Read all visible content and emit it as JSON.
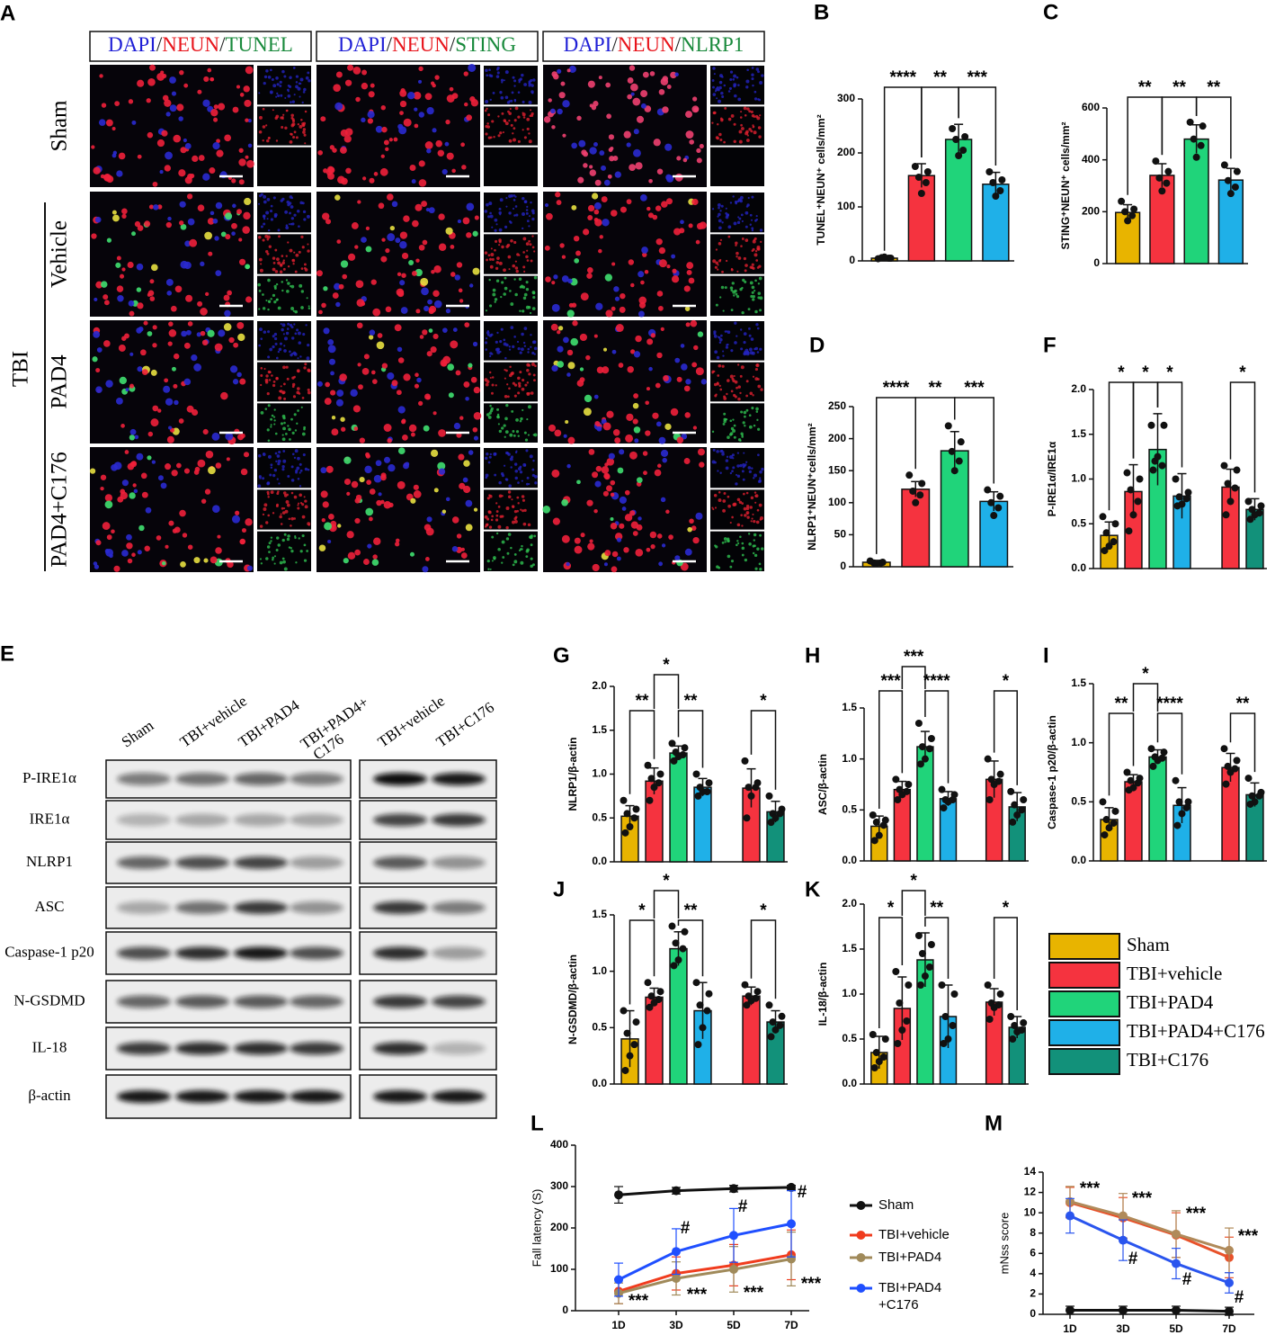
{
  "panel_a": {
    "label": "A",
    "stain_colors": [
      "#1f1fd6",
      "#222222",
      "#e8141b",
      "#222222",
      "#198a3c"
    ],
    "headers": [
      [
        "DAPI",
        "/",
        "NEUN",
        "/",
        "TUNEL"
      ],
      [
        "DAPI",
        "/",
        "NEUN",
        "/",
        "STING"
      ],
      [
        "DAPI",
        "/",
        "NEUN",
        "/",
        "NLRP1"
      ]
    ],
    "rows": [
      "Sham",
      "Vehicle",
      "PAD4",
      "PAD4+C176"
    ],
    "group": "TBI"
  },
  "panel_e": {
    "label": "E",
    "columns": [
      "Sham",
      "TBI+vehicle",
      "TBI+PAD4",
      [
        "TBI+PAD4+",
        "C176"
      ],
      "TBI+vehicle",
      "TBI+C176"
    ],
    "rows": [
      "P-IRE1α",
      "IRE1α",
      "NLRP1",
      "ASC",
      "Caspase-1 p20",
      "N-GSDMD",
      "IL-18",
      "β-actin"
    ]
  },
  "legend": {
    "names": [
      "Sham",
      "TBI+vehicle",
      "TBI+PAD4",
      "TBI+PAD4+C176",
      "TBI+C176"
    ],
    "colors": [
      "#e8b400",
      "#f5333f",
      "#20d47a",
      "#1fb0e8",
      "#12917a"
    ]
  },
  "chart_data": [
    {
      "type": "bar",
      "label": "B",
      "ylabel": "TUNEL⁺NEUN⁺ cells/mm²",
      "categories": [
        null,
        null,
        null,
        null
      ],
      "values": [
        5,
        158,
        225,
        142
      ],
      "errors": [
        2,
        22,
        28,
        22
      ],
      "points": [
        [
          4,
          5,
          6,
          5,
          7
        ],
        [
          175,
          165,
          155,
          145,
          125
        ],
        [
          245,
          230,
          225,
          205,
          195
        ],
        [
          165,
          150,
          145,
          130,
          120
        ]
      ],
      "colors": [
        "#e8b400",
        "#f5333f",
        "#20d47a",
        "#1fb0e8"
      ],
      "ylim": [
        0,
        300
      ],
      "yticks": [
        0,
        100,
        200,
        300
      ],
      "annotations": [
        "****",
        "**",
        "***"
      ]
    },
    {
      "type": "bar",
      "label": "C",
      "ylabel": "STING⁺NEUN⁺ cells/mm²",
      "categories": [
        null,
        null,
        null,
        null
      ],
      "values": [
        197,
        340,
        480,
        322
      ],
      "errors": [
        30,
        45,
        55,
        45
      ],
      "points": [
        [
          240,
          210,
          200,
          185,
          165
        ],
        [
          395,
          355,
          330,
          310,
          280
        ],
        [
          545,
          530,
          480,
          455,
          410
        ],
        [
          380,
          355,
          320,
          295,
          270
        ]
      ],
      "colors": [
        "#e8b400",
        "#f5333f",
        "#20d47a",
        "#1fb0e8"
      ],
      "ylim": [
        0,
        600
      ],
      "yticks": [
        0,
        200,
        400,
        600
      ],
      "annotations": [
        "**",
        "**",
        "**"
      ]
    },
    {
      "type": "bar",
      "label": "D",
      "ylabel": "NLRP1⁺NEUN⁺cells/mm²",
      "categories": [
        null,
        null,
        null,
        null
      ],
      "values": [
        7,
        121,
        181,
        102
      ],
      "errors": [
        3,
        12,
        30,
        15
      ],
      "points": [
        [
          9,
          7,
          6,
          6,
          5
        ],
        [
          143,
          130,
          118,
          112,
          100
        ],
        [
          220,
          195,
          180,
          165,
          150
        ],
        [
          120,
          110,
          100,
          92,
          80
        ]
      ],
      "colors": [
        "#e8b400",
        "#f5333f",
        "#20d47a",
        "#1fb0e8"
      ],
      "ylim": [
        0,
        250
      ],
      "yticks": [
        0,
        50,
        100,
        150,
        200,
        250
      ],
      "annotations": [
        "****",
        "**",
        "***"
      ]
    },
    {
      "type": "bar",
      "label": "F",
      "ylabel": "P-IRE1α/IRE1α",
      "categories": [
        null,
        null,
        null,
        null,
        null,
        null
      ],
      "values": [
        0.37,
        0.86,
        1.33,
        0.81,
        0.91,
        0.66
      ],
      "errors": [
        0.15,
        0.3,
        0.4,
        0.25,
        0.2,
        0.12
      ],
      "points": [
        [
          0.58,
          0.5,
          0.4,
          0.3,
          0.25,
          0.2
        ],
        [
          1.07,
          1.0,
          0.88,
          0.75,
          0.6,
          0.42
        ],
        [
          1.6,
          1.6,
          1.2,
          1.15,
          1.25,
          1.1
        ],
        [
          1.0,
          0.85,
          0.8,
          0.78,
          0.72,
          0.7
        ],
        [
          1.15,
          1.1,
          0.95,
          0.9,
          0.75,
          0.6
        ],
        [
          0.75,
          0.7,
          0.66,
          0.62,
          0.6,
          0.55
        ]
      ],
      "colors": [
        "#e8b400",
        "#f5333f",
        "#20d47a",
        "#1fb0e8",
        "#f5333f",
        "#12917a"
      ],
      "ylim": [
        0,
        2
      ],
      "yticks": [
        {
          "value": 0,
          "label": "0.0"
        },
        0.5,
        {
          "value": 1,
          "label": "1.0"
        },
        1.5,
        {
          "value": 2,
          "label": "2.0"
        }
      ],
      "annotations": [
        "*",
        "*",
        "*",
        "*"
      ]
    },
    {
      "type": "bar",
      "label": "G",
      "ylabel": "NLRP1/β-actin",
      "categories": [
        null,
        null,
        null,
        null,
        null,
        null
      ],
      "values": [
        0.52,
        0.92,
        1.24,
        0.85,
        0.84,
        0.57
      ],
      "errors": [
        0.12,
        0.15,
        0.08,
        0.1,
        0.22,
        0.12
      ],
      "points": [
        [
          0.7,
          0.6,
          0.55,
          0.5,
          0.4,
          0.33
        ],
        [
          1.1,
          1.0,
          0.95,
          0.9,
          0.85,
          0.7
        ],
        [
          1.35,
          1.3,
          1.25,
          1.22,
          1.2,
          1.15
        ],
        [
          1.0,
          0.9,
          0.85,
          0.8,
          0.8,
          0.75
        ],
        [
          1.15,
          0.9,
          0.85,
          0.85,
          0.75,
          0.5
        ],
        [
          0.75,
          0.6,
          0.55,
          0.55,
          0.5,
          0.45
        ]
      ],
      "colors": [
        "#e8b400",
        "#f5333f",
        "#20d47a",
        "#1fb0e8",
        "#f5333f",
        "#12917a"
      ],
      "ylim": [
        0,
        2
      ],
      "yticks": [
        {
          "value": 0,
          "label": "0.0"
        },
        0.5,
        {
          "value": 1,
          "label": "1.0"
        },
        1.5,
        {
          "value": 2,
          "label": "2.0"
        }
      ],
      "annotations": [
        "**",
        "*",
        "**",
        "*"
      ]
    },
    {
      "type": "bar",
      "label": "H",
      "ylabel": "ASC/β-actin",
      "categories": [
        null,
        null,
        null,
        null,
        null,
        null
      ],
      "values": [
        0.34,
        0.7,
        1.12,
        0.61,
        0.8,
        0.53
      ],
      "errors": [
        0.1,
        0.08,
        0.15,
        0.07,
        0.18,
        0.14
      ],
      "points": [
        [
          0.45,
          0.4,
          0.38,
          0.35,
          0.25,
          0.2
        ],
        [
          0.8,
          0.75,
          0.7,
          0.68,
          0.65,
          0.6
        ],
        [
          1.35,
          1.2,
          1.12,
          1.1,
          1.0,
          0.95
        ],
        [
          0.7,
          0.65,
          0.6,
          0.6,
          0.58,
          0.52
        ],
        [
          1.0,
          0.85,
          0.8,
          0.78,
          0.75,
          0.6
        ],
        [
          0.68,
          0.6,
          0.55,
          0.5,
          0.45,
          0.38
        ]
      ],
      "colors": [
        "#e8b400",
        "#f5333f",
        "#20d47a",
        "#1fb0e8",
        "#f5333f",
        "#12917a"
      ],
      "ylim": [
        0,
        1.5
      ],
      "yticks": [
        {
          "value": 0,
          "label": "0.0"
        },
        0.5,
        {
          "value": 1,
          "label": "1.0"
        },
        1.5
      ],
      "annotations": [
        "***",
        "***",
        "****",
        "*"
      ]
    },
    {
      "type": "bar",
      "label": "I",
      "ylabel": "Caspase-1 p20/β-actin",
      "categories": [
        null,
        null,
        null,
        null,
        null,
        null
      ],
      "values": [
        0.35,
        0.67,
        0.88,
        0.47,
        0.79,
        0.56
      ],
      "errors": [
        0.1,
        0.06,
        0.06,
        0.15,
        0.12,
        0.1
      ],
      "points": [
        [
          0.5,
          0.42,
          0.35,
          0.32,
          0.28,
          0.22
        ],
        [
          0.75,
          0.7,
          0.68,
          0.66,
          0.62,
          0.6
        ],
        [
          0.95,
          0.92,
          0.88,
          0.87,
          0.85,
          0.8
        ],
        [
          0.68,
          0.5,
          0.5,
          0.45,
          0.4,
          0.3
        ],
        [
          0.95,
          0.85,
          0.8,
          0.78,
          0.75,
          0.65
        ],
        [
          0.7,
          0.58,
          0.55,
          0.55,
          0.5,
          0.48
        ]
      ],
      "colors": [
        "#e8b400",
        "#f5333f",
        "#20d47a",
        "#1fb0e8",
        "#f5333f",
        "#12917a"
      ],
      "ylim": [
        0,
        1.5
      ],
      "yticks": [
        {
          "value": 0,
          "label": "0.0"
        },
        0.5,
        {
          "value": 1,
          "label": "1.0"
        },
        1.5
      ],
      "annotations": [
        "**",
        "*",
        "****",
        "**"
      ]
    },
    {
      "type": "bar",
      "label": "J",
      "ylabel": "N-GSDMD/β-actin",
      "categories": [
        null,
        null,
        null,
        null,
        null,
        null
      ],
      "values": [
        0.4,
        0.77,
        1.2,
        0.65,
        0.78,
        0.55
      ],
      "errors": [
        0.25,
        0.08,
        0.15,
        0.25,
        0.08,
        0.1
      ],
      "points": [
        [
          0.65,
          0.55,
          0.45,
          0.35,
          0.25,
          0.12
        ],
        [
          0.9,
          0.82,
          0.78,
          0.75,
          0.72,
          0.68
        ],
        [
          1.4,
          1.35,
          1.25,
          1.2,
          1.1,
          1.05
        ],
        [
          0.9,
          0.8,
          0.7,
          0.65,
          0.5,
          0.35
        ],
        [
          0.88,
          0.82,
          0.78,
          0.76,
          0.74,
          0.7
        ],
        [
          0.7,
          0.6,
          0.55,
          0.52,
          0.48,
          0.42
        ]
      ],
      "colors": [
        "#e8b400",
        "#f5333f",
        "#20d47a",
        "#1fb0e8",
        "#f5333f",
        "#12917a"
      ],
      "ylim": [
        0,
        1.5
      ],
      "yticks": [
        {
          "value": 0,
          "label": "0.0"
        },
        0.5,
        {
          "value": 1,
          "label": "1.0"
        },
        1.5
      ],
      "annotations": [
        "*",
        "*",
        "**",
        "*"
      ]
    },
    {
      "type": "bar",
      "label": "K",
      "ylabel": "IL-18/β-actin",
      "categories": [
        null,
        null,
        null,
        null,
        null,
        null
      ],
      "values": [
        0.35,
        0.84,
        1.38,
        0.75,
        0.91,
        0.63
      ],
      "errors": [
        0.18,
        0.35,
        0.3,
        0.35,
        0.15,
        0.12
      ],
      "points": [
        [
          0.55,
          0.5,
          0.35,
          0.3,
          0.25,
          0.18
        ],
        [
          1.25,
          1.1,
          0.9,
          0.7,
          0.6,
          0.45
        ],
        [
          1.65,
          1.55,
          1.45,
          1.3,
          1.2,
          1.1
        ],
        [
          1.1,
          1.0,
          0.75,
          0.65,
          0.5,
          0.45
        ],
        [
          1.1,
          1.0,
          0.9,
          0.88,
          0.85,
          0.72
        ],
        [
          0.75,
          0.68,
          0.65,
          0.6,
          0.58,
          0.5
        ]
      ],
      "colors": [
        "#e8b400",
        "#f5333f",
        "#20d47a",
        "#1fb0e8",
        "#f5333f",
        "#12917a"
      ],
      "ylim": [
        0,
        2
      ],
      "yticks": [
        {
          "value": 0,
          "label": "0.0"
        },
        0.5,
        {
          "value": 1,
          "label": "1.0"
        },
        1.5,
        {
          "value": 2,
          "label": "2.0"
        }
      ],
      "annotations": [
        "*",
        "*",
        "**",
        "*"
      ]
    },
    {
      "type": "line",
      "label": "L",
      "ylabel": "Fall latency  (S)",
      "x": [
        "1D",
        "3D",
        "5D",
        "7D"
      ],
      "ylim": [
        0,
        400
      ],
      "yticks": [
        0,
        100,
        200,
        300,
        400
      ],
      "legend": true,
      "series": [
        {
          "name": "Sham",
          "color": "#111111",
          "values": [
            280,
            290,
            295,
            298
          ],
          "errors": [
            20,
            8,
            8,
            5
          ]
        },
        {
          "name": "TBI+vehicle",
          "color": "#f03c1e",
          "values": [
            47,
            90,
            110,
            135
          ],
          "errors": [
            30,
            40,
            50,
            60
          ]
        },
        {
          "name": "TBI+PAD4",
          "color": "#a08a5a",
          "values": [
            42,
            78,
            100,
            125
          ],
          "errors": [
            25,
            40,
            55,
            65
          ]
        },
        {
          "name": [
            "TBI+PAD4",
            "+C176"
          ],
          "color": "#1f4fff",
          "values": [
            75,
            143,
            182,
            210
          ],
          "errors": [
            40,
            55,
            65,
            80
          ]
        }
      ],
      "annotations": [
        "***",
        "***",
        "***",
        "***",
        "#",
        "#",
        "#"
      ]
    },
    {
      "type": "line",
      "label": "M",
      "ylabel": "mNss score",
      "x": [
        "1D",
        "3D",
        "5D",
        "7D"
      ],
      "ylim": [
        0,
        14
      ],
      "yticks": [
        0,
        2,
        4,
        6,
        8,
        10,
        12,
        14
      ],
      "legend": false,
      "series": [
        {
          "color": "#111111",
          "values": [
            0.4,
            0.4,
            0.4,
            0.3
          ],
          "errors": [
            0.4,
            0.4,
            0.4,
            0.4
          ]
        },
        {
          "color": "#e8522a",
          "values": [
            11,
            9.5,
            7.8,
            5.6
          ],
          "errors": [
            1.5,
            2,
            2.2,
            2
          ]
        },
        {
          "color": "#b08a5a",
          "values": [
            11.1,
            9.7,
            7.9,
            6.3
          ],
          "errors": [
            1.5,
            2.2,
            2.3,
            2.2
          ]
        },
        {
          "color": "#2a55ee",
          "values": [
            9.7,
            7.3,
            5.0,
            3.1
          ],
          "errors": [
            1.7,
            2,
            1.5,
            1
          ]
        }
      ],
      "annotations": [
        "***",
        "***",
        "***",
        "***",
        "#",
        "#",
        "#"
      ]
    }
  ]
}
